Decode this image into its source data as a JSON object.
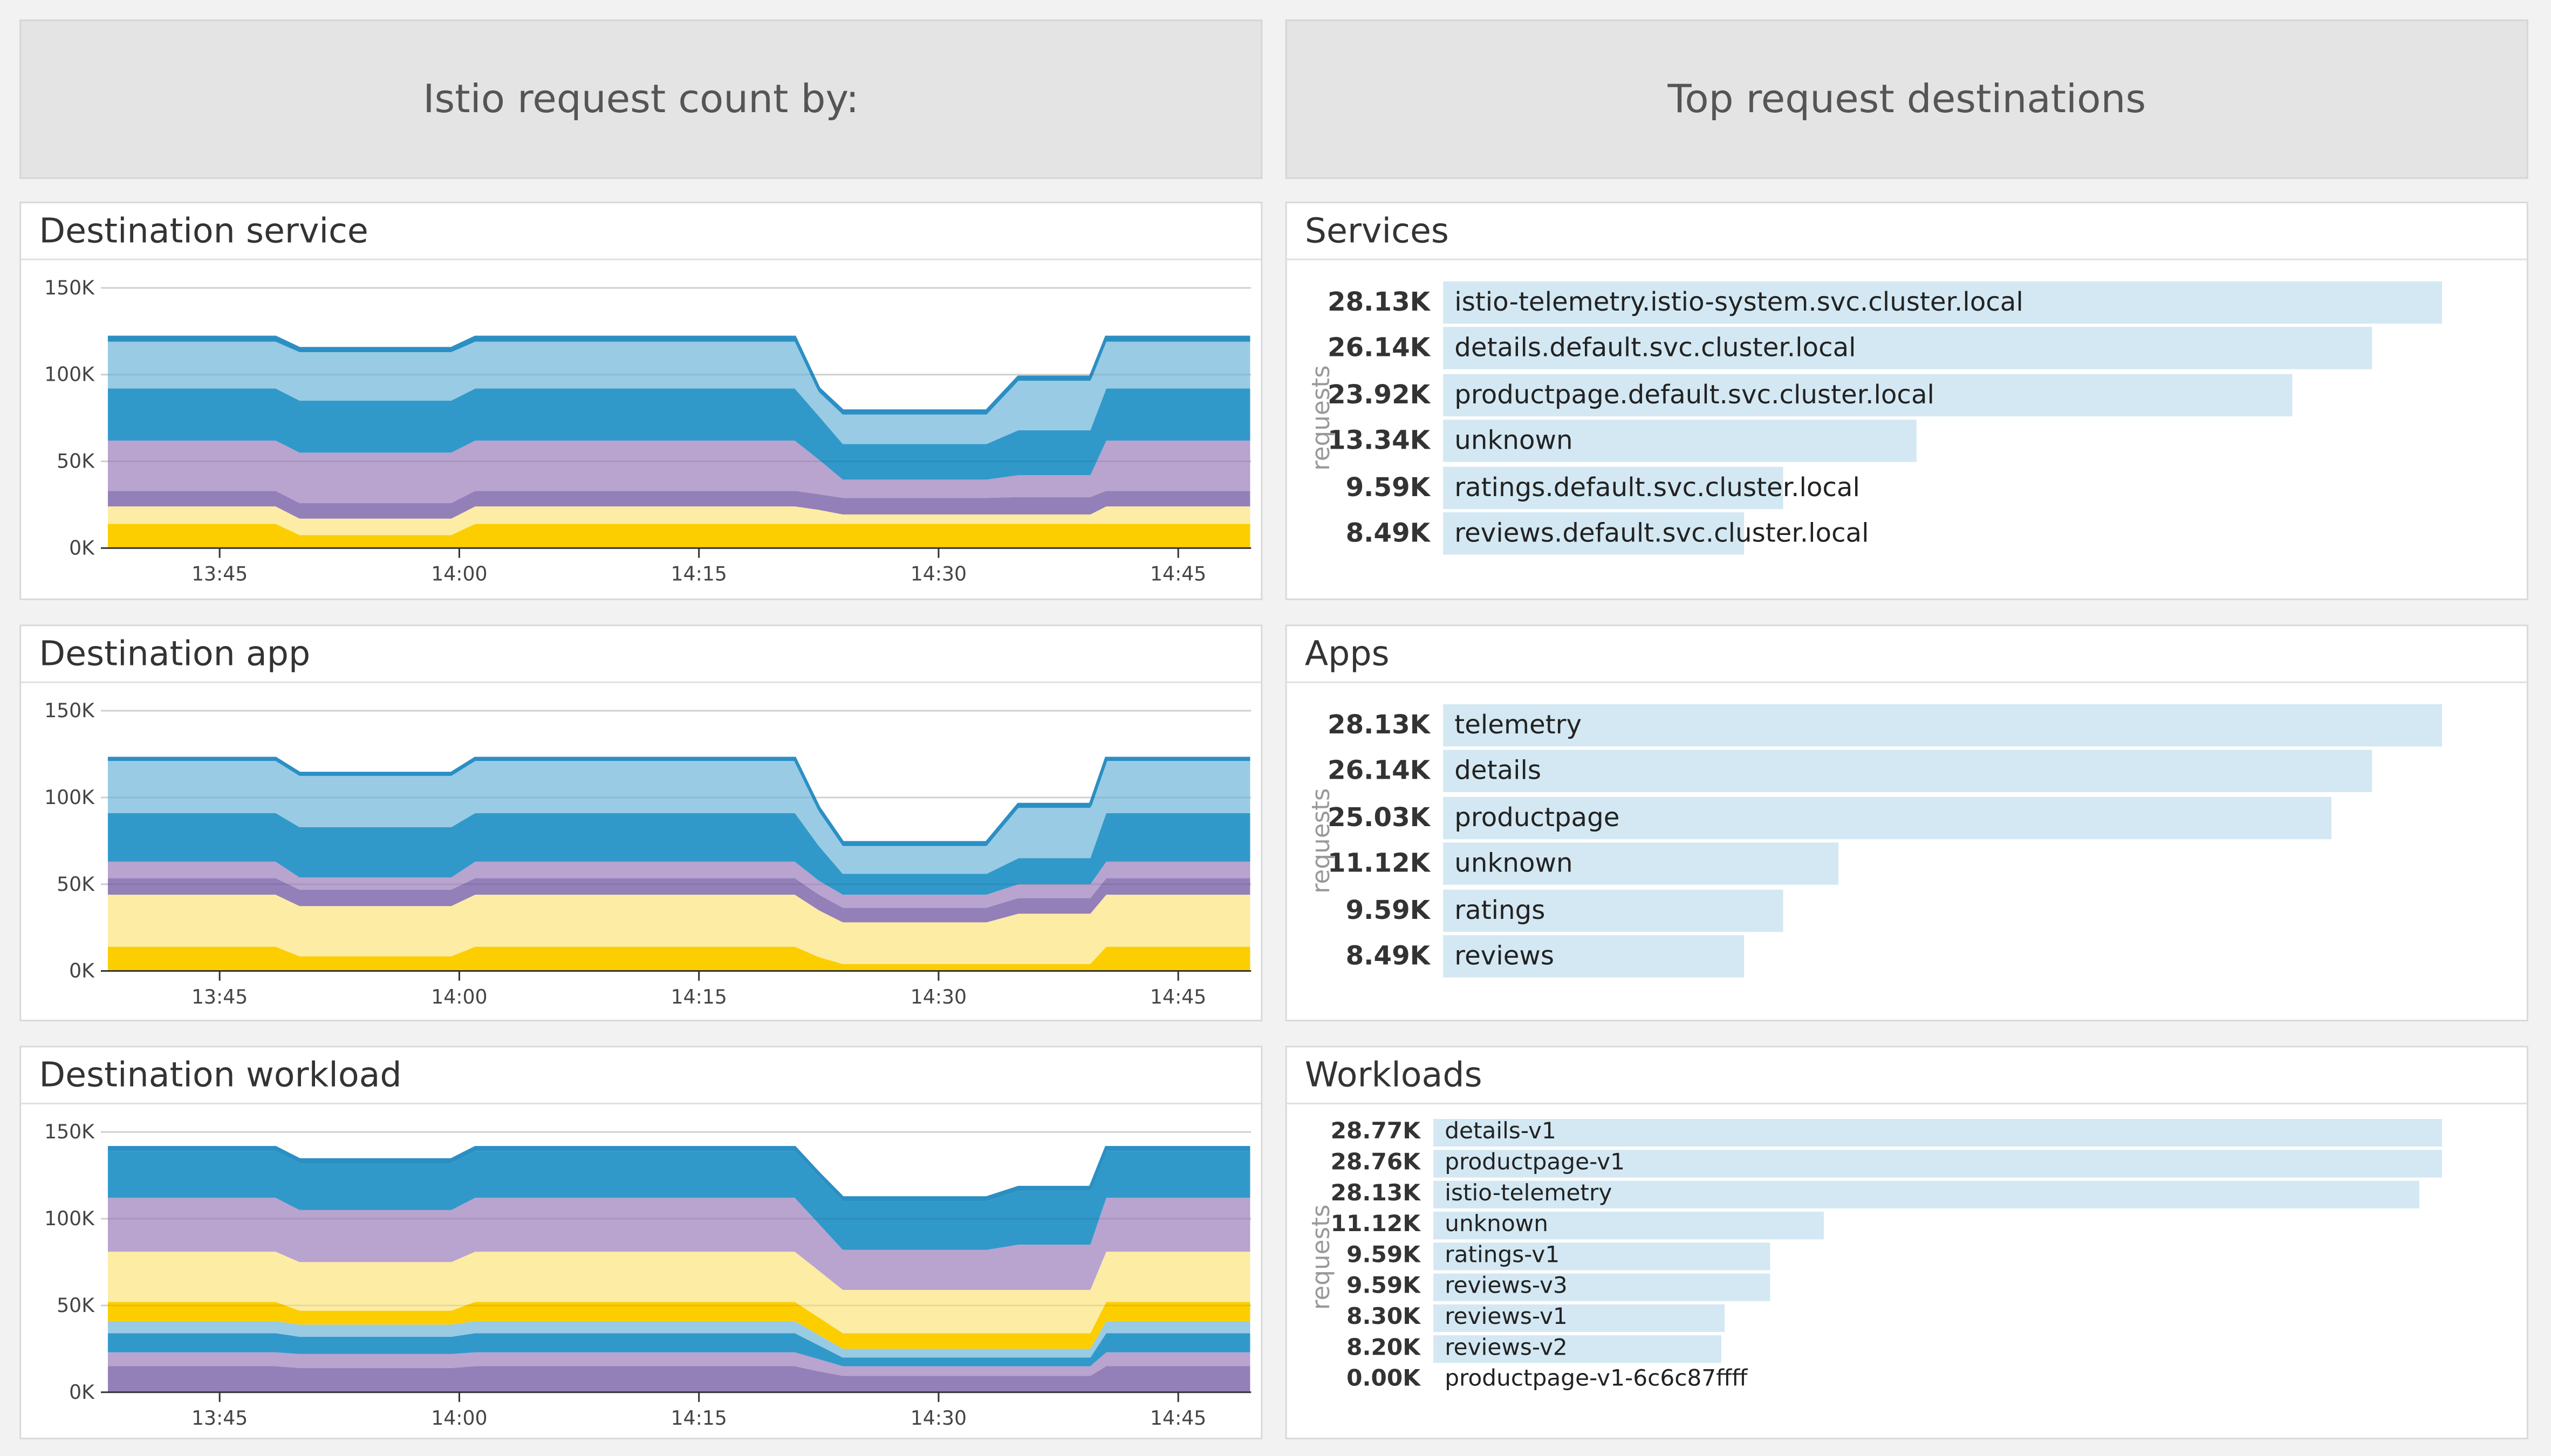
{
  "headers": {
    "left": "Istio request count by:",
    "right": "Top request destinations"
  },
  "charts": [
    {
      "title": "Destination service"
    },
    {
      "title": "Destination app"
    },
    {
      "title": "Destination workload"
    }
  ],
  "chart_data": [
    {
      "type": "area",
      "stacked": true,
      "ylim": [
        0,
        150
      ],
      "yticks": [
        "0K",
        "50K",
        "100K",
        "150K"
      ],
      "ytick_values": [
        0,
        50,
        100,
        150
      ],
      "xticks": [
        "13:45",
        "14:00",
        "14:15",
        "14:30",
        "14:45"
      ],
      "x": [
        "13:38:00",
        "13:48:30",
        "13:50:00",
        "13:59:30",
        "14:01:00",
        "14:21:00",
        "14:22:30",
        "14:24:00",
        "14:33:00",
        "14:35:00",
        "14:39:30",
        "14:40:30",
        "14:49:30"
      ],
      "series": [
        {
          "color": "#fcce00",
          "values": [
            14,
            14,
            7.5,
            7.5,
            14,
            14,
            14,
            14,
            14,
            14,
            14,
            14,
            14
          ]
        },
        {
          "color": "#fdeca4",
          "values": [
            10,
            10,
            9.5,
            9.5,
            10,
            10,
            8,
            5.4,
            5.4,
            5.4,
            5.4,
            10,
            10
          ]
        },
        {
          "color": "#9380b8",
          "values": [
            9,
            9,
            9,
            9,
            9,
            9,
            9,
            9.6,
            9.6,
            10,
            10,
            9,
            9
          ]
        },
        {
          "color": "#b8a4cf",
          "values": [
            29,
            29,
            29,
            29,
            29,
            29,
            20,
            10.5,
            10.5,
            12.6,
            12.6,
            29,
            29
          ]
        },
        {
          "color": "#3199ca",
          "values": [
            30,
            30,
            30,
            30,
            30,
            30,
            25,
            20.5,
            20.5,
            26,
            26,
            30,
            30
          ]
        },
        {
          "color": "#99cbe4",
          "values": [
            27,
            27,
            28,
            28,
            27,
            27,
            14,
            17,
            17,
            28.5,
            28.5,
            27,
            27
          ]
        },
        {
          "color": "#2b8fc4",
          "values": [
            2.5,
            2.5,
            2,
            2,
            2.5,
            2.5,
            2,
            2,
            2,
            2,
            2,
            2.5,
            2.5
          ]
        }
      ]
    },
    {
      "type": "area",
      "stacked": true,
      "ylim": [
        0,
        150
      ],
      "yticks": [
        "0K",
        "50K",
        "100K",
        "150K"
      ],
      "ytick_values": [
        0,
        50,
        100,
        150
      ],
      "xticks": [
        "13:45",
        "14:00",
        "14:15",
        "14:30",
        "14:45"
      ],
      "x": [
        "13:38:00",
        "13:48:30",
        "13:50:00",
        "13:59:30",
        "14:01:00",
        "14:21:00",
        "14:22:30",
        "14:24:00",
        "14:33:00",
        "14:35:00",
        "14:39:30",
        "14:40:30",
        "14:49:30"
      ],
      "series": [
        {
          "color": "#fcce00",
          "values": [
            14,
            14,
            8.4,
            8.4,
            14,
            14,
            8,
            4,
            4,
            4,
            4,
            14,
            14
          ]
        },
        {
          "color": "#fdeca4",
          "values": [
            30,
            30,
            29,
            29,
            30,
            30,
            27,
            24,
            24,
            29,
            29,
            30,
            30
          ]
        },
        {
          "color": "#9380b8",
          "values": [
            9.5,
            9.5,
            9.5,
            9.5,
            9.5,
            9.5,
            9,
            8.5,
            8.5,
            9,
            9,
            9.5,
            9.5
          ]
        },
        {
          "color": "#b8a4cf",
          "values": [
            9.5,
            9.5,
            7,
            7,
            9.5,
            9.5,
            8,
            7.5,
            7.5,
            8,
            8,
            9.5,
            9.5
          ]
        },
        {
          "color": "#3199ca",
          "values": [
            28,
            28,
            29,
            29,
            28,
            28,
            20,
            12,
            12,
            15,
            15,
            28,
            28
          ]
        },
        {
          "color": "#99cbe4",
          "values": [
            30,
            30,
            29.5,
            29.5,
            30,
            30,
            20,
            16,
            16,
            29,
            29,
            30,
            30
          ]
        },
        {
          "color": "#2b8fc4",
          "values": [
            1.5,
            1.5,
            1.5,
            1.5,
            1.5,
            1.5,
            2,
            2,
            2,
            2,
            2,
            1.5,
            1.5
          ]
        }
      ]
    },
    {
      "type": "area",
      "stacked": true,
      "ylim": [
        0,
        150
      ],
      "yticks": [
        "0K",
        "50K",
        "100K",
        "150K"
      ],
      "ytick_values": [
        0,
        50,
        100,
        150
      ],
      "xticks": [
        "13:45",
        "14:00",
        "14:15",
        "14:30",
        "14:45"
      ],
      "x": [
        "13:38:00",
        "13:48:30",
        "13:50:00",
        "13:59:30",
        "14:01:00",
        "14:21:00",
        "14:22:30",
        "14:24:00",
        "14:33:00",
        "14:35:00",
        "14:39:30",
        "14:40:30",
        "14:49:30"
      ],
      "series": [
        {
          "color": "#9380b8",
          "values": [
            15,
            15,
            14,
            14,
            15,
            15,
            12,
            9.5,
            9.5,
            9.5,
            9.5,
            15,
            15
          ]
        },
        {
          "color": "#b8a4cf",
          "values": [
            8,
            8,
            8,
            8,
            8,
            8,
            7,
            5.5,
            5.5,
            5.5,
            5.5,
            8,
            8
          ]
        },
        {
          "color": "#3199ca",
          "values": [
            11,
            11,
            10,
            10,
            11,
            11,
            8,
            5,
            5,
            5,
            5,
            11,
            11
          ]
        },
        {
          "color": "#99cbe4",
          "values": [
            7,
            7,
            7,
            7,
            7,
            7,
            6,
            5,
            5,
            5,
            5,
            7,
            7
          ]
        },
        {
          "color": "#fcce00",
          "values": [
            11,
            11,
            8,
            8,
            11,
            11,
            10,
            9,
            9,
            9,
            9,
            11,
            11
          ]
        },
        {
          "color": "#fdeca4",
          "values": [
            29,
            29,
            28,
            28,
            29,
            29,
            27,
            25,
            25,
            25,
            25,
            29,
            29
          ]
        },
        {
          "color": "#b8a4cf",
          "values": [
            31,
            31,
            30,
            30,
            31,
            31,
            27,
            23,
            23,
            26,
            26,
            31,
            31
          ]
        },
        {
          "color": "#3199ca",
          "values": [
            27,
            27,
            27,
            27,
            27,
            27,
            27,
            28,
            28,
            31,
            31,
            27,
            27
          ]
        },
        {
          "color": "#2b8fc4",
          "values": [
            2,
            2,
            2,
            2,
            2,
            2,
            2,
            2,
            2,
            2,
            2,
            2,
            2
          ]
        }
      ]
    }
  ],
  "toplists": [
    {
      "title": "Services",
      "axis_label": "requests",
      "bar_color": "#d3e8f2",
      "items": [
        {
          "value": "28.13K",
          "name": "istio-telemetry.istio-system.svc.cluster.local"
        },
        {
          "value": "26.14K",
          "name": "details.default.svc.cluster.local"
        },
        {
          "value": "23.92K",
          "name": "productpage.default.svc.cluster.local"
        },
        {
          "value": "13.34K",
          "name": "unknown"
        },
        {
          "value": "9.59K",
          "name": "ratings.default.svc.cluster.local"
        },
        {
          "value": "8.49K",
          "name": "reviews.default.svc.cluster.local"
        }
      ]
    },
    {
      "title": "Apps",
      "axis_label": "requests",
      "bar_color": "#d3e8f2",
      "items": [
        {
          "value": "28.13K",
          "name": "telemetry"
        },
        {
          "value": "26.14K",
          "name": "details"
        },
        {
          "value": "25.03K",
          "name": "productpage"
        },
        {
          "value": "11.12K",
          "name": "unknown"
        },
        {
          "value": "9.59K",
          "name": "ratings"
        },
        {
          "value": "8.49K",
          "name": "reviews"
        }
      ]
    },
    {
      "title": "Workloads",
      "axis_label": "requests",
      "bar_color": "#d3e8f2",
      "items": [
        {
          "value": "28.77K",
          "name": "details-v1"
        },
        {
          "value": "28.76K",
          "name": "productpage-v1"
        },
        {
          "value": "28.13K",
          "name": "istio-telemetry"
        },
        {
          "value": "11.12K",
          "name": "unknown"
        },
        {
          "value": "9.59K",
          "name": "ratings-v1"
        },
        {
          "value": "9.59K",
          "name": "reviews-v3"
        },
        {
          "value": "8.30K",
          "name": "reviews-v1"
        },
        {
          "value": "8.20K",
          "name": "reviews-v2"
        },
        {
          "value": "0.00K",
          "name": "productpage-v1-6c6c87ffff"
        }
      ]
    }
  ]
}
